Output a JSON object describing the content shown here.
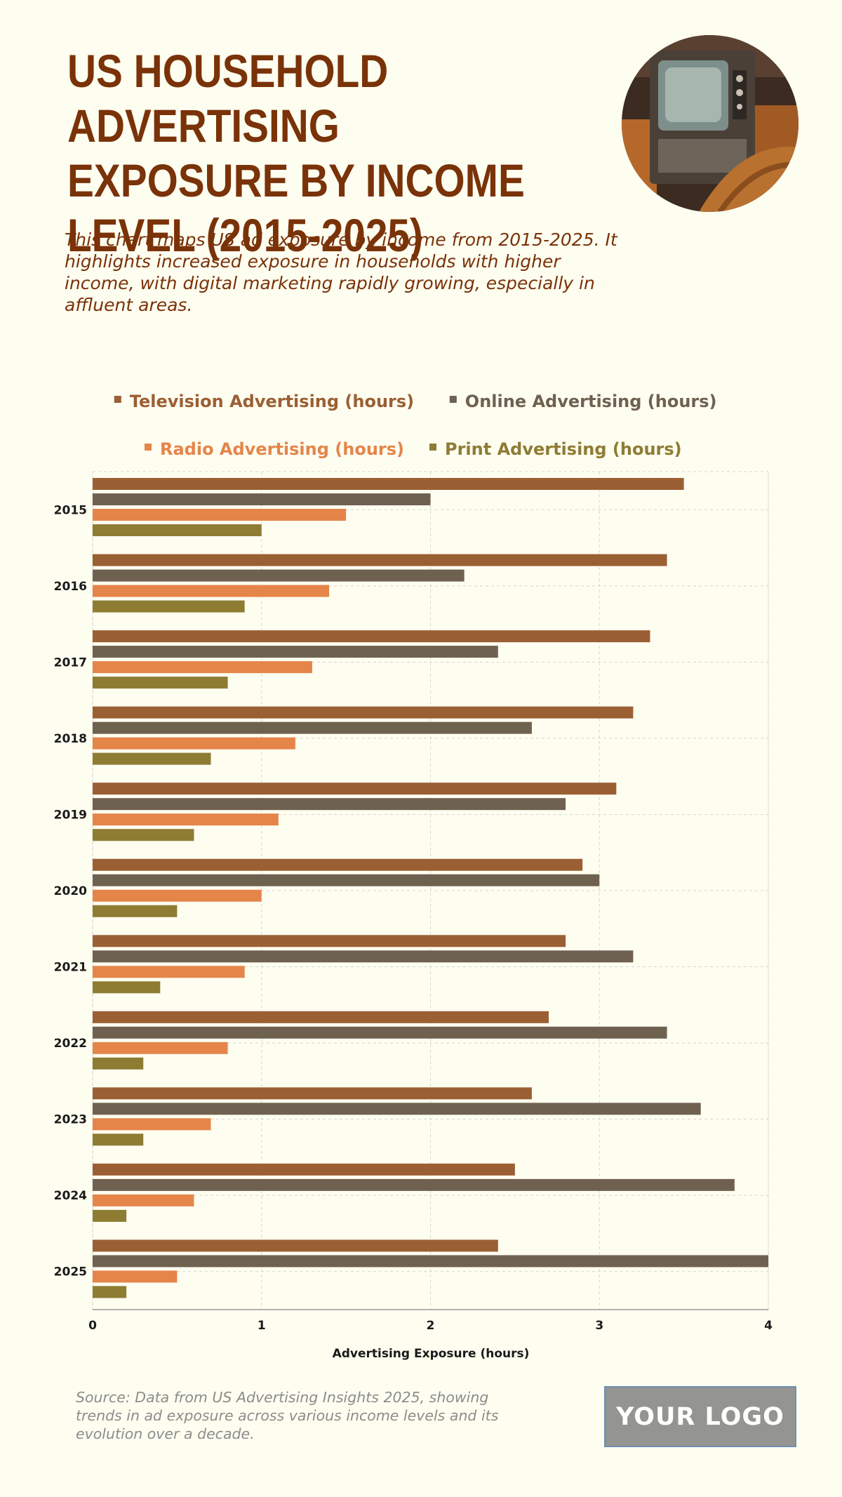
{
  "header": {
    "title": "US HOUSEHOLD ADVERTISING EXPOSURE BY INCOME LEVEL (2015-2025)",
    "subtitle": "This chart maps US ad exposure by income from 2015-2025. It highlights increased exposure in households with higher income, with digital marketing rapidly growing, especially in affluent areas.",
    "image_icon": "vintage-television-photo"
  },
  "chart_data": {
    "type": "bar",
    "orientation": "horizontal",
    "categories": [
      "2015",
      "2016",
      "2017",
      "2018",
      "2019",
      "2020",
      "2021",
      "2022",
      "2023",
      "2024",
      "2025"
    ],
    "series": [
      {
        "name": "Television Advertising (hours)",
        "color": "#9b5f34",
        "values": [
          3.5,
          3.4,
          3.3,
          3.2,
          3.1,
          2.9,
          2.8,
          2.7,
          2.6,
          2.5,
          2.4
        ]
      },
      {
        "name": "Online Advertising (hours)",
        "color": "#6f6150",
        "values": [
          2.0,
          2.2,
          2.4,
          2.6,
          2.8,
          3.0,
          3.2,
          3.4,
          3.6,
          3.8,
          4.0
        ]
      },
      {
        "name": "Radio Advertising (hours)",
        "color": "#e5854a",
        "values": [
          1.5,
          1.4,
          1.3,
          1.2,
          1.1,
          1.0,
          0.9,
          0.8,
          0.7,
          0.6,
          0.5
        ]
      },
      {
        "name": "Print Advertising (hours)",
        "color": "#8e7c33",
        "values": [
          1.0,
          0.9,
          0.8,
          0.7,
          0.6,
          0.5,
          0.4,
          0.3,
          0.3,
          0.2,
          0.2
        ]
      }
    ],
    "xlabel": "Advertising Exposure (hours)",
    "ylabel": "",
    "xlim": [
      0,
      4
    ],
    "xticks": [
      "0",
      "1",
      "2",
      "3",
      "4"
    ],
    "grid": true,
    "legend_position": "top"
  },
  "footer": {
    "source": "Source: Data from US Advertising Insights 2025, showing trends in ad exposure across various income levels and its evolution over a decade.",
    "logo_text": "YOUR LOGO"
  }
}
